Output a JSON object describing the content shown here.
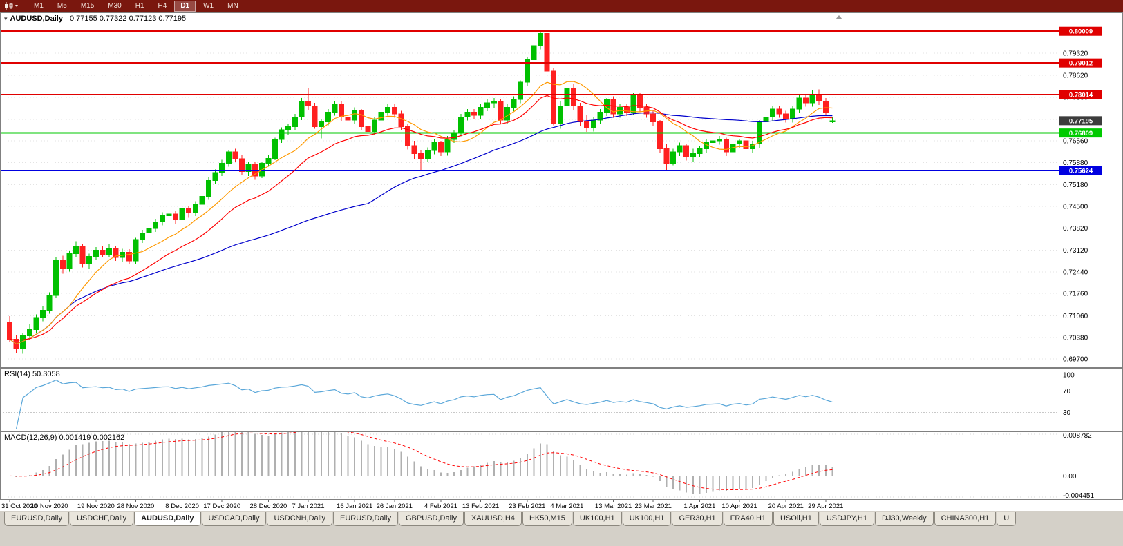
{
  "toolbar": {
    "timeframes": [
      "M1",
      "M5",
      "M15",
      "M30",
      "H1",
      "H4",
      "D1",
      "W1",
      "MN"
    ],
    "active": "D1"
  },
  "chart": {
    "title": "AUDUSD,Daily",
    "ohlc_label": "0.77155 0.77322 0.77123 0.77195",
    "current_price": "0.77195",
    "price_axis_labels": [
      "0.79320",
      "0.78620",
      "0.77930",
      "0.77240",
      "0.76560",
      "0.75880",
      "0.75180",
      "0.74500",
      "0.73820",
      "0.73120",
      "0.72440",
      "0.71760",
      "0.71060",
      "0.70380",
      "0.69700"
    ],
    "colors": {
      "up": "#00c000",
      "down": "#ff2020",
      "ma_fast": "#ff9900",
      "ma_mid": "#ff0000",
      "ma_slow": "#0000cc",
      "rsi": "#5aa7d9",
      "macd_hist": "#b0b0b0",
      "macd_signal": "#ff0000",
      "grid": "#e3e3e3",
      "current_price_box": "#3c3c3c"
    }
  },
  "rsi": {
    "label": "RSI(14) 50.3058",
    "axis_labels": [
      {
        "v": 100,
        "t": "100"
      },
      {
        "v": 70,
        "t": "70"
      },
      {
        "v": 30,
        "t": "30"
      }
    ],
    "level_lines": [
      70,
      30
    ]
  },
  "macd": {
    "label": "MACD(12,26,9) 0.001419 0.002162",
    "axis_labels": [
      {
        "v": 0.008782,
        "t": "0.008782"
      },
      {
        "v": 0,
        "t": "0.00"
      },
      {
        "v": -0.004451,
        "t": "-0.004451"
      }
    ]
  },
  "tabs": {
    "active_index": 2,
    "items": [
      "EURUSD,Daily",
      "USDCHF,Daily",
      "AUDUSD,Daily",
      "USDCAD,Daily",
      "USDCNH,Daily",
      "EURUSD,Daily",
      "GBPUSD,Daily",
      "XAUUSD,H4",
      "HK50,M15",
      "UK100,H1",
      "UK100,H1",
      "GER30,H1",
      "FRA40,H1",
      "USOil,H1",
      "USDJPY,H1",
      "DJ30,Weekly",
      "CHINA300,H1",
      "U"
    ]
  },
  "chart_data": {
    "type": "candlestick",
    "symbol": "AUDUSD",
    "timeframe": "Daily",
    "ohlc_current": {
      "open": 0.77155,
      "high": 0.77322,
      "low": 0.77123,
      "close": 0.77195
    },
    "y_range": [
      0.6942,
      0.806
    ],
    "horizontal_lines": [
      {
        "price": 0.80009,
        "label": "0.80009",
        "color": "#e00000",
        "kind": "resistance"
      },
      {
        "price": 0.79012,
        "label": "0.79012",
        "color": "#e00000",
        "kind": "resistance"
      },
      {
        "price": 0.78014,
        "label": "0.78014",
        "color": "#e00000",
        "kind": "resistance"
      },
      {
        "price": 0.76809,
        "label": "0.76809",
        "color": "#00ca00",
        "kind": "support"
      },
      {
        "price": 0.75624,
        "label": "0.75624",
        "color": "#0000e0",
        "kind": "support"
      }
    ],
    "x_ticks": {
      "labels": [
        "31 Oct 2020",
        "10 Nov 2020",
        "19 Nov 2020",
        "28 Nov 2020",
        "8 Dec 2020",
        "17 Dec 2020",
        "28 Dec 2020",
        "7 Jan 2021",
        "16 Jan 2021",
        "26 Jan 2021",
        "4 Feb 2021",
        "13 Feb 2021",
        "23 Feb 2021",
        "4 Mar 2021",
        "13 Mar 2021",
        "23 Mar 2021",
        "1 Apr 2021",
        "10 Apr 2021",
        "20 Apr 2021",
        "29 Apr 2021"
      ],
      "candle_indices": [
        0,
        6,
        13,
        19,
        26,
        32,
        39,
        45,
        52,
        58,
        65,
        71,
        78,
        84,
        91,
        97,
        104,
        110,
        117,
        123
      ]
    },
    "indicators": {
      "moving_averages": [
        {
          "name": "fast",
          "type": "sma",
          "period": 10,
          "color": "#ff9900"
        },
        {
          "name": "mid",
          "type": "ema",
          "period": 20,
          "color": "#ff0000"
        },
        {
          "name": "slow",
          "type": "sma",
          "period": 55,
          "color": "#0000cc"
        }
      ],
      "rsi": {
        "period": 14,
        "current": 50.3058
      },
      "macd": {
        "fast": 12,
        "slow": 26,
        "signal": 9,
        "current_macd": 0.001419,
        "current_signal": 0.002162
      }
    },
    "candles": [
      [
        0.7085,
        0.7105,
        0.7025,
        0.7032
      ],
      [
        0.7032,
        0.7045,
        0.6988,
        0.7002
      ],
      [
        0.7002,
        0.7052,
        0.6987,
        0.7043
      ],
      [
        0.7043,
        0.708,
        0.703,
        0.7062
      ],
      [
        0.7062,
        0.711,
        0.7052,
        0.71
      ],
      [
        0.71,
        0.7135,
        0.7088,
        0.7123
      ],
      [
        0.7123,
        0.718,
        0.7112,
        0.717
      ],
      [
        0.717,
        0.729,
        0.7162,
        0.7281
      ],
      [
        0.7281,
        0.7295,
        0.7238,
        0.7254
      ],
      [
        0.7254,
        0.731,
        0.7245,
        0.7301
      ],
      [
        0.7301,
        0.734,
        0.729,
        0.7323
      ],
      [
        0.7323,
        0.7331,
        0.7258,
        0.727
      ],
      [
        0.727,
        0.7301,
        0.7254,
        0.7293
      ],
      [
        0.7293,
        0.7322,
        0.7281,
        0.7312
      ],
      [
        0.7312,
        0.7326,
        0.7289,
        0.7299
      ],
      [
        0.7299,
        0.7331,
        0.729,
        0.7316
      ],
      [
        0.7316,
        0.7325,
        0.7279,
        0.7289
      ],
      [
        0.7289,
        0.7316,
        0.7274,
        0.7306
      ],
      [
        0.7306,
        0.7315,
        0.7269,
        0.7279
      ],
      [
        0.7279,
        0.7351,
        0.727,
        0.7346
      ],
      [
        0.7346,
        0.7376,
        0.7335,
        0.7366
      ],
      [
        0.7366,
        0.7391,
        0.7355,
        0.7381
      ],
      [
        0.7381,
        0.7411,
        0.737,
        0.7401
      ],
      [
        0.7401,
        0.7431,
        0.739,
        0.7421
      ],
      [
        0.7421,
        0.744,
        0.7404,
        0.7426
      ],
      [
        0.7426,
        0.7436,
        0.7394,
        0.741
      ],
      [
        0.741,
        0.7451,
        0.74,
        0.7442
      ],
      [
        0.7442,
        0.745,
        0.7414,
        0.7429
      ],
      [
        0.7429,
        0.7466,
        0.742,
        0.7456
      ],
      [
        0.7456,
        0.7491,
        0.7445,
        0.7481
      ],
      [
        0.7481,
        0.7541,
        0.7471,
        0.7531
      ],
      [
        0.7531,
        0.7566,
        0.752,
        0.7556
      ],
      [
        0.7556,
        0.7596,
        0.7545,
        0.7586
      ],
      [
        0.7586,
        0.7626,
        0.7575,
        0.7621
      ],
      [
        0.7621,
        0.7631,
        0.7589,
        0.76
      ],
      [
        0.76,
        0.7611,
        0.7548,
        0.756
      ],
      [
        0.756,
        0.7591,
        0.7545,
        0.7581
      ],
      [
        0.7581,
        0.759,
        0.7534,
        0.7545
      ],
      [
        0.7545,
        0.7591,
        0.7539,
        0.7586
      ],
      [
        0.7586,
        0.7611,
        0.7575,
        0.7601
      ],
      [
        0.7601,
        0.7666,
        0.7595,
        0.7661
      ],
      [
        0.7661,
        0.7699,
        0.765,
        0.7691
      ],
      [
        0.7691,
        0.7711,
        0.7675,
        0.7701
      ],
      [
        0.7701,
        0.7741,
        0.769,
        0.7731
      ],
      [
        0.7731,
        0.7791,
        0.7721,
        0.7781
      ],
      [
        0.7781,
        0.7821,
        0.7754,
        0.7766
      ],
      [
        0.7766,
        0.7776,
        0.7694,
        0.7701
      ],
      [
        0.7701,
        0.7726,
        0.7664,
        0.7716
      ],
      [
        0.7716,
        0.7756,
        0.7705,
        0.7746
      ],
      [
        0.7746,
        0.7781,
        0.7735,
        0.7771
      ],
      [
        0.7771,
        0.7781,
        0.7719,
        0.7731
      ],
      [
        0.7731,
        0.7746,
        0.7704,
        0.7721
      ],
      [
        0.7721,
        0.7761,
        0.771,
        0.7751
      ],
      [
        0.7751,
        0.7756,
        0.7689,
        0.7701
      ],
      [
        0.7701,
        0.7716,
        0.7659,
        0.7686
      ],
      [
        0.7686,
        0.7731,
        0.7674,
        0.7721
      ],
      [
        0.7721,
        0.7756,
        0.771,
        0.7746
      ],
      [
        0.7746,
        0.7771,
        0.7735,
        0.7761
      ],
      [
        0.7761,
        0.7771,
        0.7729,
        0.7741
      ],
      [
        0.7741,
        0.7751,
        0.7689,
        0.7701
      ],
      [
        0.7701,
        0.7711,
        0.7629,
        0.7641
      ],
      [
        0.7641,
        0.7656,
        0.7599,
        0.7616
      ],
      [
        0.7616,
        0.7626,
        0.7564,
        0.7601
      ],
      [
        0.7601,
        0.7636,
        0.7589,
        0.7626
      ],
      [
        0.7626,
        0.7661,
        0.7614,
        0.7651
      ],
      [
        0.7651,
        0.7656,
        0.7609,
        0.7621
      ],
      [
        0.7621,
        0.7671,
        0.761,
        0.7661
      ],
      [
        0.7661,
        0.7691,
        0.765,
        0.7681
      ],
      [
        0.7681,
        0.7741,
        0.767,
        0.7731
      ],
      [
        0.7731,
        0.7756,
        0.772,
        0.7746
      ],
      [
        0.7746,
        0.7756,
        0.7724,
        0.7736
      ],
      [
        0.7736,
        0.7771,
        0.7724,
        0.7761
      ],
      [
        0.7761,
        0.7786,
        0.775,
        0.7776
      ],
      [
        0.7776,
        0.7791,
        0.776,
        0.7781
      ],
      [
        0.7781,
        0.7786,
        0.7709,
        0.7721
      ],
      [
        0.7721,
        0.7771,
        0.771,
        0.7761
      ],
      [
        0.7761,
        0.7796,
        0.775,
        0.7786
      ],
      [
        0.7786,
        0.7846,
        0.7774,
        0.7841
      ],
      [
        0.7841,
        0.7921,
        0.783,
        0.7911
      ],
      [
        0.7911,
        0.7966,
        0.7894,
        0.7956
      ],
      [
        0.7956,
        0.80009,
        0.7944,
        0.7994
      ],
      [
        0.7994,
        0.7999,
        0.7864,
        0.7876
      ],
      [
        0.7876,
        0.7886,
        0.7705,
        0.7711
      ],
      [
        0.7711,
        0.7781,
        0.7694,
        0.7766
      ],
      [
        0.7766,
        0.7831,
        0.7755,
        0.7821
      ],
      [
        0.7821,
        0.7836,
        0.7754,
        0.7766
      ],
      [
        0.7766,
        0.7776,
        0.7704,
        0.7716
      ],
      [
        0.7716,
        0.7736,
        0.7684,
        0.7696
      ],
      [
        0.7696,
        0.7731,
        0.7685,
        0.7721
      ],
      [
        0.7721,
        0.7756,
        0.7709,
        0.7746
      ],
      [
        0.7746,
        0.7791,
        0.7734,
        0.7786
      ],
      [
        0.7786,
        0.7796,
        0.7729,
        0.7741
      ],
      [
        0.7741,
        0.7771,
        0.7729,
        0.7761
      ],
      [
        0.7761,
        0.7771,
        0.7734,
        0.7746
      ],
      [
        0.7746,
        0.7806,
        0.7736,
        0.7801
      ],
      [
        0.7801,
        0.7806,
        0.7749,
        0.7761
      ],
      [
        0.7761,
        0.7771,
        0.7729,
        0.7741
      ],
      [
        0.7741,
        0.7751,
        0.7704,
        0.7716
      ],
      [
        0.7716,
        0.7721,
        0.7619,
        0.7631
      ],
      [
        0.7631,
        0.7646,
        0.7561,
        0.7586
      ],
      [
        0.7586,
        0.7631,
        0.7579,
        0.7621
      ],
      [
        0.7621,
        0.7651,
        0.7609,
        0.7641
      ],
      [
        0.7641,
        0.7646,
        0.7594,
        0.7606
      ],
      [
        0.7606,
        0.7631,
        0.7589,
        0.7616
      ],
      [
        0.7616,
        0.7641,
        0.7604,
        0.7631
      ],
      [
        0.7631,
        0.7661,
        0.7619,
        0.7651
      ],
      [
        0.7651,
        0.7666,
        0.7639,
        0.7656
      ],
      [
        0.7656,
        0.7671,
        0.7644,
        0.7661
      ],
      [
        0.7661,
        0.7666,
        0.7609,
        0.7621
      ],
      [
        0.7621,
        0.7656,
        0.7614,
        0.7646
      ],
      [
        0.7646,
        0.7661,
        0.7634,
        0.7656
      ],
      [
        0.7656,
        0.7661,
        0.7619,
        0.7631
      ],
      [
        0.7631,
        0.7656,
        0.7619,
        0.7646
      ],
      [
        0.7646,
        0.7721,
        0.7634,
        0.7716
      ],
      [
        0.7716,
        0.7741,
        0.7704,
        0.7731
      ],
      [
        0.7731,
        0.7766,
        0.7719,
        0.7756
      ],
      [
        0.7756,
        0.7766,
        0.7729,
        0.7741
      ],
      [
        0.7741,
        0.7751,
        0.7714,
        0.7726
      ],
      [
        0.7726,
        0.7766,
        0.7714,
        0.7756
      ],
      [
        0.7756,
        0.7801,
        0.7744,
        0.7791
      ],
      [
        0.7791,
        0.7801,
        0.7764,
        0.7776
      ],
      [
        0.7776,
        0.7816,
        0.7764,
        0.7801
      ],
      [
        0.7801,
        0.7818,
        0.7769,
        0.7781
      ],
      [
        0.7781,
        0.7791,
        0.7734,
        0.7746
      ],
      [
        0.77155,
        0.77322,
        0.77123,
        0.77195
      ]
    ]
  }
}
